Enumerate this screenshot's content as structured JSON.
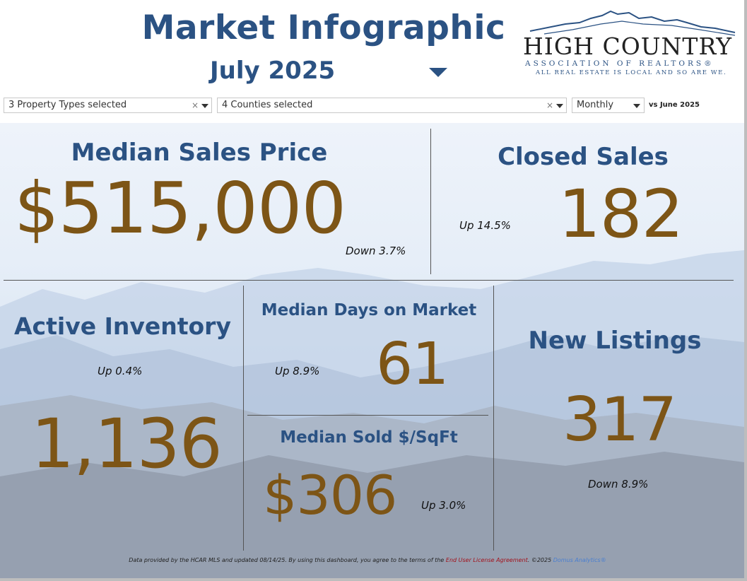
{
  "header": {
    "title": "Market Infographic",
    "month": "July 2025"
  },
  "logo": {
    "name": "HIGH COUNTRY",
    "subtitle": "ASSOCIATION OF REALTORS®",
    "tagline": "ALL REAL ESTATE IS LOCAL AND SO ARE WE."
  },
  "filters": {
    "property_types": "3 Property Types selected",
    "counties": "4 Counties selected",
    "period": "Monthly",
    "comparison": "vs June 2025"
  },
  "metrics": {
    "median_sales_price": {
      "title": "Median Sales Price",
      "value": "$515,000",
      "change": "Down 3.7%"
    },
    "closed_sales": {
      "title": "Closed Sales",
      "value": "182",
      "change": "Up 14.5%"
    },
    "active_inventory": {
      "title": "Active Inventory",
      "value": "1,136",
      "change": "Up 0.4%"
    },
    "median_days_on_market": {
      "title": "Median Days on Market",
      "value": "61",
      "change": "Up 8.9%"
    },
    "median_sold_sqft": {
      "title": "Median Sold $/SqFt",
      "value": "$306",
      "change": "Up 3.0%"
    },
    "new_listings": {
      "title": "New Listings",
      "value": "317",
      "change": "Down 8.9%"
    }
  },
  "footer": {
    "text_before": "Data provided by the HCAR MLS and updated 08/14/25.  By using this dashboard, you agree to the terms of the ",
    "license_link": "End User License Agreement",
    "text_middle": ".  ©2025 ",
    "domus_link": "Domus Analytics®"
  },
  "colors": {
    "title_blue": "#2b5283",
    "value_brown": "#7d5516",
    "license_red": "#a3121c",
    "link_blue": "#4a7fd0"
  },
  "icons": {
    "month_dropdown": "caret-down-icon",
    "filter_clear": "clear-x-icon",
    "filter_dropdown": "caret-down-icon",
    "logo_mountain": "mountain-ridge-icon"
  }
}
